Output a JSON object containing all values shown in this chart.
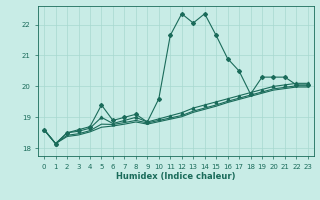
{
  "title": "",
  "xlabel": "Humidex (Indice chaleur)",
  "ylabel": "",
  "bg_color": "#c8ece6",
  "line_color": "#1a6b5a",
  "grid_color": "#a8d8d0",
  "xlim": [
    -0.5,
    23.5
  ],
  "ylim": [
    17.75,
    22.6
  ],
  "yticks": [
    18,
    19,
    20,
    21,
    22
  ],
  "xticks": [
    0,
    1,
    2,
    3,
    4,
    5,
    6,
    7,
    8,
    9,
    10,
    11,
    12,
    13,
    14,
    15,
    16,
    17,
    18,
    19,
    20,
    21,
    22,
    23
  ],
  "series": [
    {
      "x": [
        0,
        1,
        2,
        3,
        4,
        5,
        6,
        7,
        8,
        9,
        10,
        11,
        12,
        13,
        14,
        15,
        16,
        17,
        18,
        19,
        20,
        21,
        22,
        23
      ],
      "y": [
        18.6,
        18.15,
        18.5,
        18.6,
        18.7,
        19.4,
        18.9,
        19.0,
        19.1,
        18.85,
        19.6,
        21.65,
        22.35,
        22.05,
        22.35,
        21.65,
        20.9,
        20.5,
        19.75,
        20.3,
        20.3,
        20.3,
        20.05,
        20.05
      ],
      "marker": "D",
      "markersize": 2.0,
      "linewidth": 0.8
    },
    {
      "x": [
        0,
        1,
        2,
        3,
        4,
        5,
        6,
        7,
        8,
        9,
        10,
        11,
        12,
        13,
        14,
        15,
        16,
        17,
        18,
        19,
        20,
        21,
        22,
        23
      ],
      "y": [
        18.6,
        18.15,
        18.5,
        18.55,
        18.65,
        19.0,
        18.8,
        18.9,
        19.0,
        18.85,
        18.95,
        19.05,
        19.15,
        19.3,
        19.4,
        19.5,
        19.6,
        19.7,
        19.8,
        19.9,
        20.0,
        20.05,
        20.1,
        20.1
      ],
      "marker": "^",
      "markersize": 2.0,
      "linewidth": 0.8
    },
    {
      "x": [
        0,
        1,
        2,
        3,
        4,
        5,
        6,
        7,
        8,
        9,
        10,
        11,
        12,
        13,
        14,
        15,
        16,
        17,
        18,
        19,
        20,
        21,
        22,
        23
      ],
      "y": [
        18.6,
        18.15,
        18.42,
        18.47,
        18.57,
        18.78,
        18.77,
        18.83,
        18.9,
        18.82,
        18.9,
        18.98,
        19.06,
        19.2,
        19.3,
        19.4,
        19.52,
        19.62,
        19.72,
        19.82,
        19.92,
        19.97,
        20.02,
        20.02
      ],
      "marker": null,
      "markersize": 0,
      "linewidth": 0.8
    },
    {
      "x": [
        0,
        1,
        2,
        3,
        4,
        5,
        6,
        7,
        8,
        9,
        10,
        11,
        12,
        13,
        14,
        15,
        16,
        17,
        18,
        19,
        20,
        21,
        22,
        23
      ],
      "y": [
        18.6,
        18.15,
        18.38,
        18.43,
        18.53,
        18.68,
        18.72,
        18.78,
        18.85,
        18.78,
        18.86,
        18.94,
        19.02,
        19.16,
        19.26,
        19.36,
        19.48,
        19.58,
        19.68,
        19.78,
        19.88,
        19.93,
        19.98,
        19.98
      ],
      "marker": null,
      "markersize": 0,
      "linewidth": 0.8
    }
  ]
}
